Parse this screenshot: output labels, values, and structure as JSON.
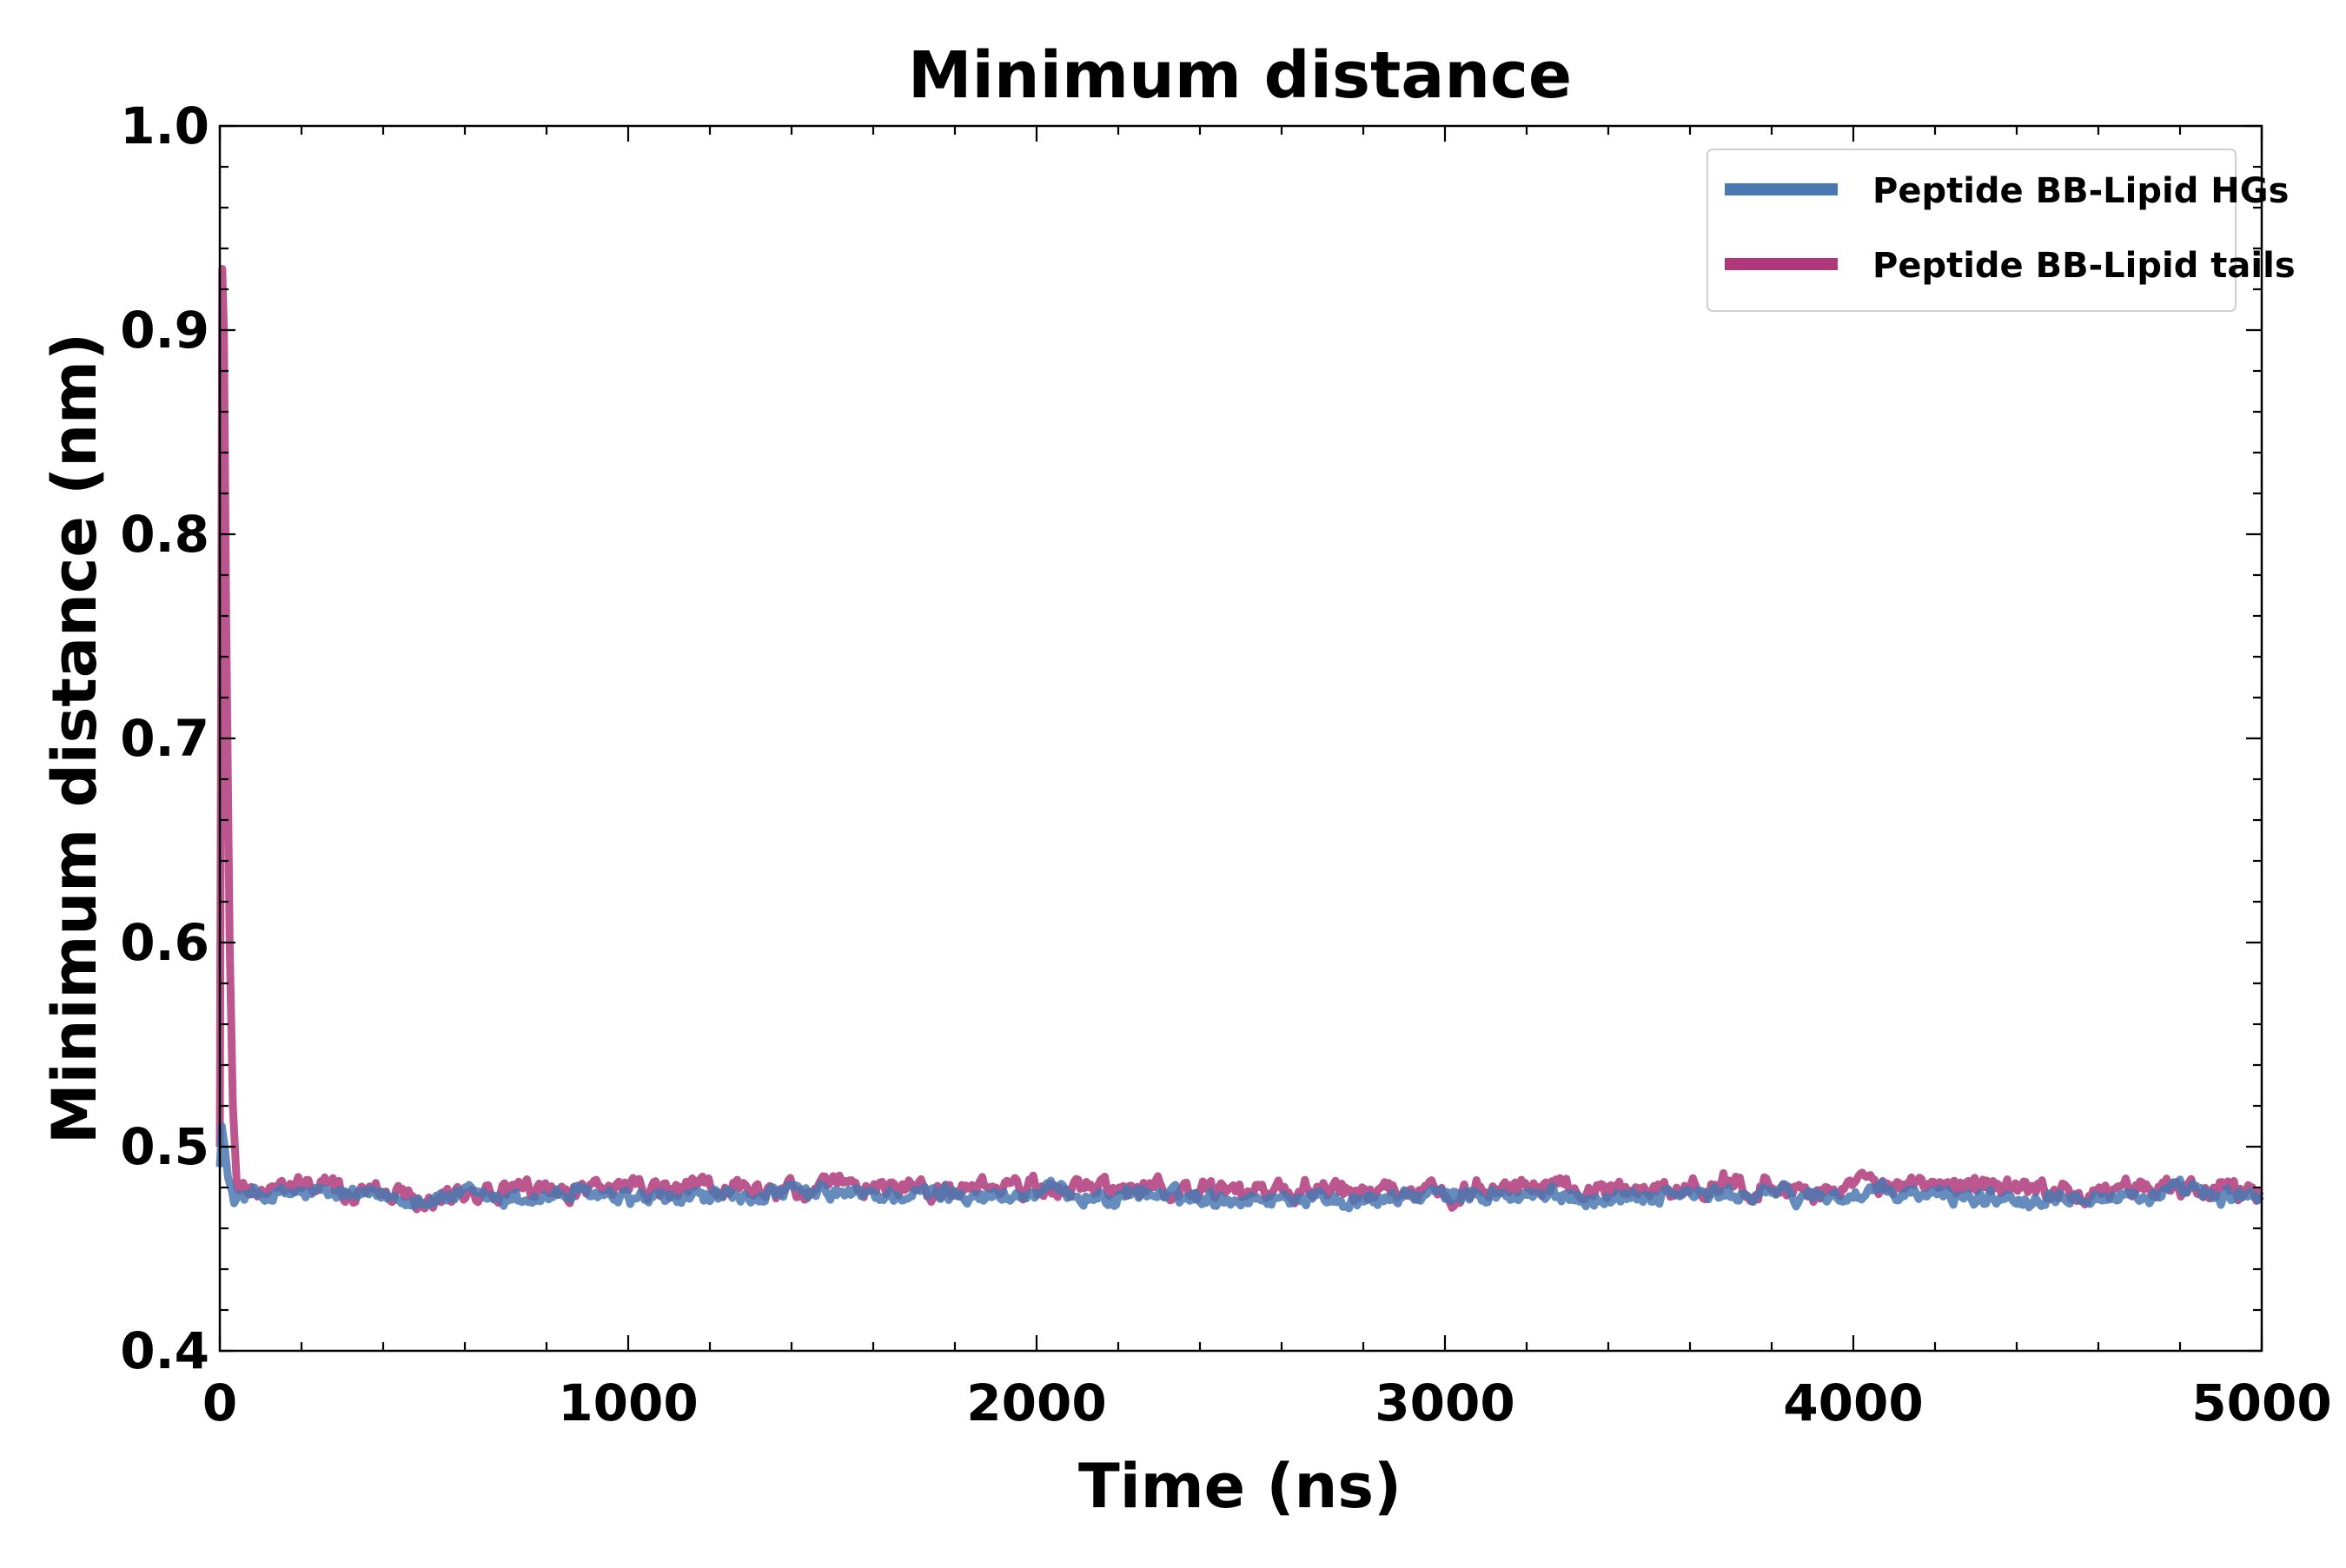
{
  "chart_data": {
    "type": "line",
    "title": "Minimum distance",
    "xlabel": "Time (ns)",
    "ylabel": "Minimum distance (nm)",
    "xlim": [
      0,
      5000
    ],
    "ylim": [
      0.4,
      1.0
    ],
    "xticks": [
      0,
      1000,
      2000,
      3000,
      4000,
      5000
    ],
    "xtick_labels": [
      "0",
      "1000",
      "2000",
      "3000",
      "4000",
      "5000"
    ],
    "yticks": [
      0.4,
      0.5,
      0.6,
      0.7,
      0.8,
      0.9,
      1.0
    ],
    "ytick_labels": [
      "0.4",
      "0.5",
      "0.6",
      "0.7",
      "0.8",
      "0.9",
      "1.0"
    ],
    "x_minor_step": 200,
    "y_minor_step": 0.02,
    "grid": false,
    "legend_position": "top-right",
    "series": [
      {
        "name": "Peptide BB-Lipid HGs",
        "color": "#4a78b0",
        "baseline": 0.476,
        "noise": 0.006,
        "start_points": [
          [
            0,
            0.49
          ],
          [
            5,
            0.51
          ],
          [
            12,
            0.5
          ],
          [
            20,
            0.485
          ],
          [
            30,
            0.478
          ]
        ]
      },
      {
        "name": "Peptide BB-Lipid tails",
        "color": "#b0387a",
        "baseline": 0.479,
        "noise": 0.008,
        "start_points": [
          [
            0,
            0.5
          ],
          [
            6,
            0.93
          ],
          [
            10,
            0.9
          ],
          [
            16,
            0.75
          ],
          [
            24,
            0.6
          ],
          [
            32,
            0.52
          ],
          [
            42,
            0.48
          ]
        ]
      }
    ]
  }
}
